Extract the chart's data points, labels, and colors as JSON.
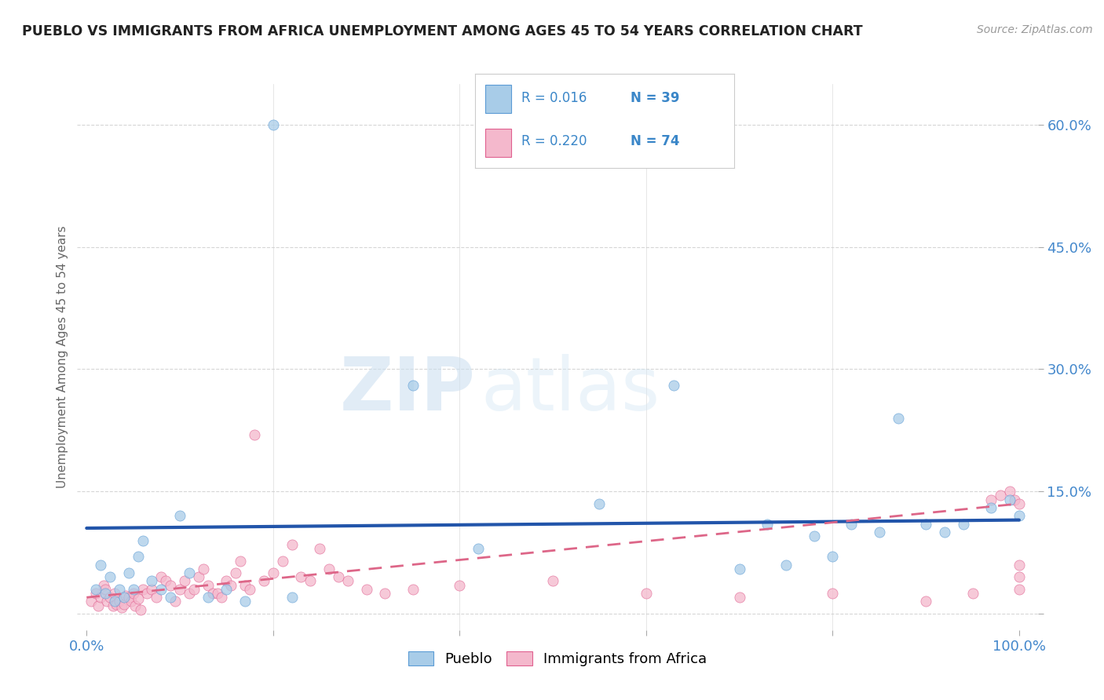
{
  "title": "PUEBLO VS IMMIGRANTS FROM AFRICA UNEMPLOYMENT AMONG AGES 45 TO 54 YEARS CORRELATION CHART",
  "source": "Source: ZipAtlas.com",
  "ylabel": "Unemployment Among Ages 45 to 54 years",
  "watermark_zip": "ZIP",
  "watermark_atlas": "atlas",
  "xlim": [
    -1,
    102
  ],
  "ylim": [
    -2,
    65
  ],
  "yticks": [
    0,
    15,
    30,
    45,
    60
  ],
  "grid_color": "#cccccc",
  "pueblo_color": "#a8cce8",
  "africa_color": "#f4b8cc",
  "pueblo_edge_color": "#5b9bd5",
  "africa_edge_color": "#e06090",
  "pueblo_line_color": "#2255aa",
  "africa_line_color": "#dd6688",
  "pueblo_R": 0.016,
  "pueblo_N": 39,
  "africa_R": 0.22,
  "africa_N": 74,
  "legend_pueblo": "Pueblo",
  "legend_africa": "Immigrants from Africa",
  "background_color": "#ffffff",
  "pueblo_x": [
    1.0,
    1.5,
    2.0,
    2.5,
    3.0,
    3.5,
    4.0,
    4.5,
    5.0,
    5.5,
    6.0,
    7.0,
    8.0,
    9.0,
    10.0,
    11.0,
    13.0,
    15.0,
    17.0,
    20.0,
    22.0,
    35.0,
    42.0,
    55.0,
    63.0,
    70.0,
    73.0,
    75.0,
    78.0,
    80.0,
    82.0,
    85.0,
    87.0,
    90.0,
    92.0,
    94.0,
    97.0,
    99.0,
    100.0
  ],
  "pueblo_y": [
    3.0,
    6.0,
    2.5,
    4.5,
    1.5,
    3.0,
    2.0,
    5.0,
    3.0,
    7.0,
    9.0,
    4.0,
    3.0,
    2.0,
    12.0,
    5.0,
    2.0,
    3.0,
    1.5,
    60.0,
    2.0,
    28.0,
    8.0,
    13.5,
    28.0,
    5.5,
    11.0,
    6.0,
    9.5,
    7.0,
    11.0,
    10.0,
    24.0,
    11.0,
    10.0,
    11.0,
    13.0,
    14.0,
    12.0
  ],
  "africa_x": [
    0.5,
    1.0,
    1.2,
    1.5,
    1.8,
    2.0,
    2.2,
    2.5,
    2.8,
    3.0,
    3.2,
    3.5,
    3.8,
    4.0,
    4.2,
    4.5,
    4.8,
    5.0,
    5.2,
    5.5,
    5.8,
    6.0,
    6.5,
    7.0,
    7.5,
    8.0,
    8.5,
    9.0,
    9.5,
    10.0,
    10.5,
    11.0,
    11.5,
    12.0,
    12.5,
    13.0,
    13.5,
    14.0,
    14.5,
    15.0,
    15.5,
    16.0,
    16.5,
    17.0,
    17.5,
    18.0,
    19.0,
    20.0,
    21.0,
    22.0,
    23.0,
    24.0,
    25.0,
    26.0,
    27.0,
    28.0,
    30.0,
    32.0,
    35.0,
    40.0,
    50.0,
    60.0,
    70.0,
    80.0,
    90.0,
    95.0,
    97.0,
    98.0,
    99.0,
    99.5,
    100.0,
    100.0,
    100.0,
    100.0
  ],
  "africa_y": [
    1.5,
    2.5,
    1.0,
    2.0,
    3.5,
    3.0,
    1.5,
    2.0,
    1.0,
    2.5,
    1.2,
    1.5,
    0.8,
    1.2,
    2.2,
    2.0,
    1.5,
    2.5,
    1.0,
    1.8,
    0.5,
    3.0,
    2.5,
    3.0,
    2.0,
    4.5,
    4.0,
    3.5,
    1.5,
    3.0,
    4.0,
    2.5,
    3.0,
    4.5,
    5.5,
    3.5,
    2.5,
    2.5,
    2.0,
    4.0,
    3.5,
    5.0,
    6.5,
    3.5,
    3.0,
    22.0,
    4.0,
    5.0,
    6.5,
    8.5,
    4.5,
    4.0,
    8.0,
    5.5,
    4.5,
    4.0,
    3.0,
    2.5,
    3.0,
    3.5,
    4.0,
    2.5,
    2.0,
    2.5,
    1.5,
    2.5,
    14.0,
    14.5,
    15.0,
    14.0,
    13.5,
    6.0,
    4.5,
    3.0
  ],
  "pueblo_trend_x": [
    0,
    100
  ],
  "pueblo_trend_y": [
    10.5,
    11.5
  ],
  "africa_trend_x": [
    0,
    100
  ],
  "africa_trend_y": [
    2.0,
    13.5
  ]
}
